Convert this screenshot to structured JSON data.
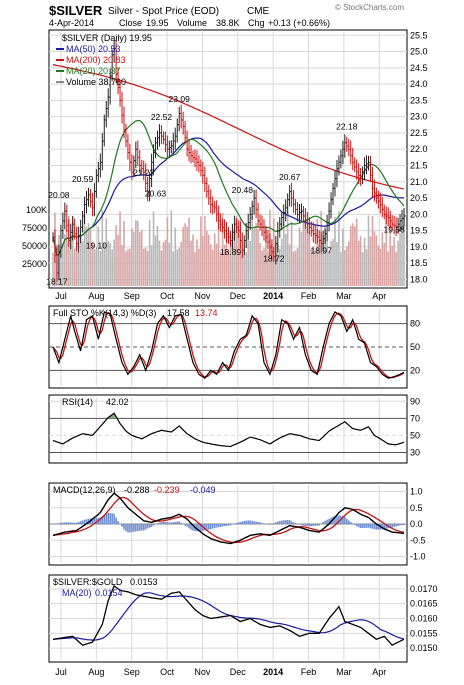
{
  "header": {
    "symbol": "$SILVER",
    "name": "Silver - Spot Price (EOD)",
    "exchange": "CME",
    "watermark": "© StockCharts.com",
    "date": "4-Apr-2014",
    "close_label": "Close",
    "close_value": "19.95",
    "volume_label": "Volume",
    "volume_value": "38.8K",
    "chg_label": "Chg",
    "chg_value": "+0.13 (+0.66%)"
  },
  "colors": {
    "price_up": "#222222",
    "price_down": "#cc1111",
    "ma50": "#1a1aa0",
    "ma200": "#cc1111",
    "ma20": "#1f7a1f",
    "volume_up": "#b8b8b8",
    "volume_down": "#d9a5a5",
    "grid": "#d8d8d8",
    "axis_text": "#000000",
    "fill_green": "#7ab07a",
    "fill_blue": "#6f8fcf"
  },
  "chart_data": [
    {
      "type": "line",
      "title": "$SILVER (Daily) 19.95",
      "legend": [
        {
          "label": "MA(50)",
          "value": "20.53",
          "color": "#1a1aa0"
        },
        {
          "label": "MA(200)",
          "value": "20.83",
          "color": "#cc1111"
        },
        {
          "label": "MA(20)",
          "value": "20.37",
          "color": "#1f7a1f"
        },
        {
          "label": "Volume",
          "value": "38,760",
          "color": "#888888"
        }
      ],
      "ylim": [
        17.8,
        25.6
      ],
      "y_ticks": [
        18.0,
        18.5,
        19.0,
        19.5,
        20.0,
        20.5,
        21.0,
        21.5,
        22.0,
        22.5,
        23.0,
        23.5,
        24.0,
        24.5,
        25.0,
        25.5
      ],
      "volume_axis_labels": [
        "100K",
        "75000",
        "50000",
        "25000"
      ],
      "x_tick_labels": [
        "Jul",
        "Aug",
        "Sep",
        "Oct",
        "Nov",
        "Dec",
        "2014",
        "Feb",
        "Mar",
        "Apr"
      ],
      "price_anchors": [
        [
          0,
          19.3
        ],
        [
          2,
          18.2
        ],
        [
          4,
          19.5
        ],
        [
          6,
          20.1
        ],
        [
          8,
          19.2
        ],
        [
          10,
          19.7
        ],
        [
          12,
          19.1
        ],
        [
          14,
          19.6
        ],
        [
          16,
          20.3
        ],
        [
          18,
          20.6
        ],
        [
          20,
          20.2
        ],
        [
          22,
          21.2
        ],
        [
          24,
          21.6
        ],
        [
          26,
          22.9
        ],
        [
          28,
          23.6
        ],
        [
          30,
          24.9
        ],
        [
          31,
          25.1
        ],
        [
          32,
          24.3
        ],
        [
          34,
          23.5
        ],
        [
          36,
          22.6
        ],
        [
          38,
          21.9
        ],
        [
          40,
          21.3
        ],
        [
          42,
          22.0
        ],
        [
          44,
          21.5
        ],
        [
          46,
          21.3
        ],
        [
          48,
          20.6
        ],
        [
          50,
          21.6
        ],
        [
          52,
          22.2
        ],
        [
          54,
          22.5
        ],
        [
          56,
          22.3
        ],
        [
          58,
          22.0
        ],
        [
          60,
          22.1
        ],
        [
          62,
          22.4
        ],
        [
          64,
          23.1
        ],
        [
          66,
          22.7
        ],
        [
          68,
          22.0
        ],
        [
          70,
          21.8
        ],
        [
          72,
          21.7
        ],
        [
          74,
          21.5
        ],
        [
          76,
          21.2
        ],
        [
          78,
          20.7
        ],
        [
          80,
          20.3
        ],
        [
          82,
          20.2
        ],
        [
          84,
          19.8
        ],
        [
          86,
          19.6
        ],
        [
          88,
          19.4
        ],
        [
          90,
          19.2
        ],
        [
          92,
          19.7
        ],
        [
          94,
          19.5
        ],
        [
          96,
          18.9
        ],
        [
          98,
          19.5
        ],
        [
          100,
          20.0
        ],
        [
          102,
          20.5
        ],
        [
          104,
          19.8
        ],
        [
          106,
          19.6
        ],
        [
          108,
          19.3
        ],
        [
          110,
          19.0
        ],
        [
          112,
          18.7
        ],
        [
          114,
          19.5
        ],
        [
          116,
          19.9
        ],
        [
          118,
          20.2
        ],
        [
          120,
          20.7
        ],
        [
          122,
          20.3
        ],
        [
          124,
          20.0
        ],
        [
          126,
          20.1
        ],
        [
          128,
          19.8
        ],
        [
          130,
          19.6
        ],
        [
          132,
          19.4
        ],
        [
          134,
          19.3
        ],
        [
          136,
          19.1
        ],
        [
          138,
          19.4
        ],
        [
          140,
          20.1
        ],
        [
          142,
          20.8
        ],
        [
          144,
          21.4
        ],
        [
          146,
          21.8
        ],
        [
          148,
          22.2
        ],
        [
          150,
          22.0
        ],
        [
          152,
          21.6
        ],
        [
          154,
          21.3
        ],
        [
          156,
          21.1
        ],
        [
          158,
          21.5
        ],
        [
          160,
          21.6
        ],
        [
          162,
          20.8
        ],
        [
          164,
          20.5
        ],
        [
          166,
          20.3
        ],
        [
          168,
          20.0
        ],
        [
          170,
          19.9
        ],
        [
          172,
          19.7
        ],
        [
          174,
          19.6
        ],
        [
          176,
          19.8
        ],
        [
          178,
          19.95
        ]
      ],
      "annotations": [
        {
          "text": "20.08",
          "i": 3,
          "y": 20.5
        },
        {
          "text": "18.17",
          "i": 2,
          "y": 17.85
        },
        {
          "text": "20.59",
          "i": 15,
          "y": 21.0
        },
        {
          "text": "19.10",
          "i": 22,
          "y": 18.95
        },
        {
          "text": "21.23",
          "i": 46,
          "y": 21.2
        },
        {
          "text": "22.52",
          "i": 55,
          "y": 22.9
        },
        {
          "text": "20.63",
          "i": 52,
          "y": 20.55
        },
        {
          "text": "23.09",
          "i": 64,
          "y": 23.45
        },
        {
          "text": "20.48",
          "i": 96,
          "y": 20.65
        },
        {
          "text": "18.89",
          "i": 90,
          "y": 18.75
        },
        {
          "text": "18.72",
          "i": 112,
          "y": 18.55
        },
        {
          "text": "20.67",
          "i": 120,
          "y": 21.05
        },
        {
          "text": "18.97",
          "i": 136,
          "y": 18.8
        },
        {
          "text": "22.18",
          "i": 149,
          "y": 22.6
        },
        {
          "text": "19.58",
          "i": 173,
          "y": 19.45
        }
      ]
    },
    {
      "type": "line",
      "title": "Full STO %K(14,3) %D(3) 17.58, 13.74",
      "legend_main": "Full STO %K(14,3) %D(3)",
      "k_value": "17.58",
      "d_value": "13.74",
      "ylim": [
        0,
        100
      ],
      "y_ticks": [
        20,
        50,
        80
      ],
      "anchors": [
        [
          0,
          50
        ],
        [
          3,
          30
        ],
        [
          6,
          60
        ],
        [
          9,
          90
        ],
        [
          11,
          70
        ],
        [
          14,
          45
        ],
        [
          17,
          85
        ],
        [
          20,
          90
        ],
        [
          23,
          60
        ],
        [
          26,
          95
        ],
        [
          29,
          92
        ],
        [
          32,
          60
        ],
        [
          35,
          30
        ],
        [
          38,
          15
        ],
        [
          41,
          25
        ],
        [
          44,
          40
        ],
        [
          47,
          20
        ],
        [
          50,
          45
        ],
        [
          53,
          80
        ],
        [
          56,
          90
        ],
        [
          59,
          75
        ],
        [
          62,
          90
        ],
        [
          65,
          92
        ],
        [
          68,
          60
        ],
        [
          71,
          30
        ],
        [
          74,
          15
        ],
        [
          77,
          10
        ],
        [
          80,
          20
        ],
        [
          83,
          15
        ],
        [
          86,
          30
        ],
        [
          89,
          20
        ],
        [
          92,
          45
        ],
        [
          95,
          60
        ],
        [
          98,
          65
        ],
        [
          101,
          90
        ],
        [
          104,
          80
        ],
        [
          107,
          30
        ],
        [
          110,
          15
        ],
        [
          113,
          40
        ],
        [
          116,
          85
        ],
        [
          119,
          80
        ],
        [
          122,
          60
        ],
        [
          125,
          75
        ],
        [
          128,
          40
        ],
        [
          131,
          20
        ],
        [
          134,
          15
        ],
        [
          137,
          50
        ],
        [
          140,
          80
        ],
        [
          143,
          95
        ],
        [
          146,
          90
        ],
        [
          149,
          70
        ],
        [
          152,
          85
        ],
        [
          155,
          60
        ],
        [
          158,
          55
        ],
        [
          161,
          30
        ],
        [
          164,
          25
        ],
        [
          167,
          15
        ],
        [
          170,
          10
        ],
        [
          173,
          12
        ],
        [
          176,
          15
        ],
        [
          178,
          17.58
        ]
      ]
    },
    {
      "type": "line",
      "title": "RSI(14) 42.02",
      "legend_main": "RSI(14)",
      "value": "42.02",
      "ylim": [
        20,
        95
      ],
      "y_ticks": [
        30,
        50,
        70,
        90
      ],
      "anchors": [
        [
          0,
          44
        ],
        [
          5,
          40
        ],
        [
          10,
          47
        ],
        [
          15,
          52
        ],
        [
          20,
          50
        ],
        [
          25,
          63
        ],
        [
          28,
          71
        ],
        [
          31,
          76
        ],
        [
          34,
          64
        ],
        [
          37,
          55
        ],
        [
          40,
          50
        ],
        [
          45,
          46
        ],
        [
          50,
          52
        ],
        [
          55,
          56
        ],
        [
          60,
          54
        ],
        [
          64,
          61
        ],
        [
          68,
          52
        ],
        [
          72,
          46
        ],
        [
          76,
          42
        ],
        [
          80,
          40
        ],
        [
          85,
          38
        ],
        [
          90,
          37
        ],
        [
          95,
          42
        ],
        [
          100,
          48
        ],
        [
          105,
          45
        ],
        [
          110,
          40
        ],
        [
          115,
          47
        ],
        [
          120,
          52
        ],
        [
          125,
          50
        ],
        [
          130,
          46
        ],
        [
          135,
          44
        ],
        [
          140,
          55
        ],
        [
          145,
          62
        ],
        [
          148,
          66
        ],
        [
          152,
          58
        ],
        [
          156,
          56
        ],
        [
          160,
          60
        ],
        [
          163,
          50
        ],
        [
          166,
          46
        ],
        [
          170,
          40
        ],
        [
          174,
          39
        ],
        [
          178,
          42.02
        ]
      ]
    },
    {
      "type": "line",
      "title": "MACD(12,26,9) -0.288, -0.239, -0.049",
      "legend_main": "MACD(12,26,9)",
      "macd_value": "-0.288",
      "signal_value": "-0.239",
      "hist_value": "-0.049",
      "ylim": [
        -1.2,
        1.2
      ],
      "y_ticks": [
        -1.0,
        -0.5,
        0.0,
        0.5,
        1.0
      ],
      "anchors": [
        [
          0,
          -0.35
        ],
        [
          6,
          -0.25
        ],
        [
          12,
          -0.2
        ],
        [
          18,
          0.05
        ],
        [
          24,
          0.35
        ],
        [
          28,
          0.75
        ],
        [
          31,
          0.95
        ],
        [
          34,
          0.8
        ],
        [
          38,
          0.5
        ],
        [
          42,
          0.3
        ],
        [
          46,
          0.1
        ],
        [
          50,
          0.05
        ],
        [
          55,
          0.15
        ],
        [
          60,
          0.2
        ],
        [
          64,
          0.3
        ],
        [
          68,
          0.15
        ],
        [
          72,
          -0.1
        ],
        [
          76,
          -0.3
        ],
        [
          80,
          -0.45
        ],
        [
          85,
          -0.55
        ],
        [
          90,
          -0.6
        ],
        [
          95,
          -0.5
        ],
        [
          100,
          -0.35
        ],
        [
          105,
          -0.3
        ],
        [
          110,
          -0.35
        ],
        [
          115,
          -0.2
        ],
        [
          120,
          -0.05
        ],
        [
          125,
          -0.1
        ],
        [
          130,
          -0.2
        ],
        [
          135,
          -0.25
        ],
        [
          140,
          0.0
        ],
        [
          145,
          0.35
        ],
        [
          148,
          0.5
        ],
        [
          152,
          0.45
        ],
        [
          156,
          0.3
        ],
        [
          160,
          0.2
        ],
        [
          164,
          0.0
        ],
        [
          168,
          -0.15
        ],
        [
          172,
          -0.25
        ],
        [
          178,
          -0.288
        ]
      ]
    },
    {
      "type": "line",
      "title": "$SILVER:$GOLD 0.0153",
      "legend_main": "$SILVER:$GOLD",
      "value": "0.0153",
      "ma_label": "MA(20)",
      "ma_value": "0.0154",
      "ylim": [
        0.0146,
        0.0174
      ],
      "y_ticks": [
        0.015,
        0.0155,
        0.016,
        0.0165,
        0.017
      ],
      "anchors": [
        [
          0,
          0.0153
        ],
        [
          5,
          0.01535
        ],
        [
          10,
          0.0154
        ],
        [
          15,
          0.0151
        ],
        [
          20,
          0.0152
        ],
        [
          25,
          0.0158
        ],
        [
          28,
          0.0166
        ],
        [
          31,
          0.0171
        ],
        [
          34,
          0.01695
        ],
        [
          38,
          0.0169
        ],
        [
          42,
          0.0168
        ],
        [
          46,
          0.01675
        ],
        [
          50,
          0.0167
        ],
        [
          55,
          0.01665
        ],
        [
          60,
          0.01685
        ],
        [
          64,
          0.0169
        ],
        [
          68,
          0.0166
        ],
        [
          72,
          0.0163
        ],
        [
          76,
          0.0161
        ],
        [
          80,
          0.016
        ],
        [
          85,
          0.01605
        ],
        [
          90,
          0.0161
        ],
        [
          95,
          0.0159
        ],
        [
          100,
          0.016
        ],
        [
          105,
          0.0158
        ],
        [
          110,
          0.0157
        ],
        [
          115,
          0.01575
        ],
        [
          120,
          0.0156
        ],
        [
          125,
          0.0154
        ],
        [
          130,
          0.0155
        ],
        [
          135,
          0.0155
        ],
        [
          140,
          0.016
        ],
        [
          145,
          0.0164
        ],
        [
          148,
          0.0159
        ],
        [
          152,
          0.0158
        ],
        [
          156,
          0.0157
        ],
        [
          160,
          0.0155
        ],
        [
          164,
          0.0153
        ],
        [
          168,
          0.0154
        ],
        [
          172,
          0.0151
        ],
        [
          178,
          0.0153
        ]
      ]
    }
  ]
}
